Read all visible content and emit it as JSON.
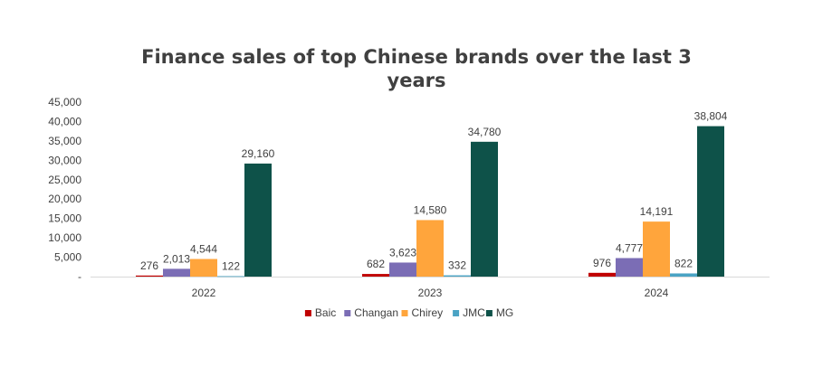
{
  "chart_data": {
    "type": "bar",
    "title": "Finance sales of top Chinese brands over the last 3 years",
    "xlabel": "",
    "ylabel": "",
    "categories": [
      "2022",
      "2023",
      "2024"
    ],
    "ylim": [
      0,
      45000
    ],
    "yticks": [
      0,
      5000,
      10000,
      15000,
      20000,
      25000,
      30000,
      35000,
      40000,
      45000
    ],
    "ytick_labels": [
      "-",
      "5,000",
      "10,000",
      "15,000",
      "20,000",
      "25,000",
      "30,000",
      "35,000",
      "40,000",
      "45,000"
    ],
    "grid": false,
    "legend_position": "bottom",
    "series": [
      {
        "name": "Baic",
        "color": "#c00000",
        "values": [
          276,
          682,
          976
        ],
        "labels": [
          "276",
          "682",
          "976"
        ]
      },
      {
        "name": "Changan",
        "color": "#7b6db5",
        "values": [
          2013,
          3623,
          4777
        ],
        "labels": [
          "2,013",
          "3,623",
          "4,777"
        ]
      },
      {
        "name": "Chirey",
        "color": "#ffa53c",
        "values": [
          4544,
          14580,
          14191
        ],
        "labels": [
          "4,544",
          "14,580",
          "14,191"
        ]
      },
      {
        "name": "JMC",
        "color": "#4aa3c4",
        "values": [
          122,
          332,
          822
        ],
        "labels": [
          "122",
          "332",
          "822"
        ]
      },
      {
        "name": "MG",
        "color": "#0e5249",
        "values": [
          29160,
          34780,
          38804
        ],
        "labels": [
          "29,160",
          "34,780",
          "38,804"
        ]
      }
    ]
  }
}
